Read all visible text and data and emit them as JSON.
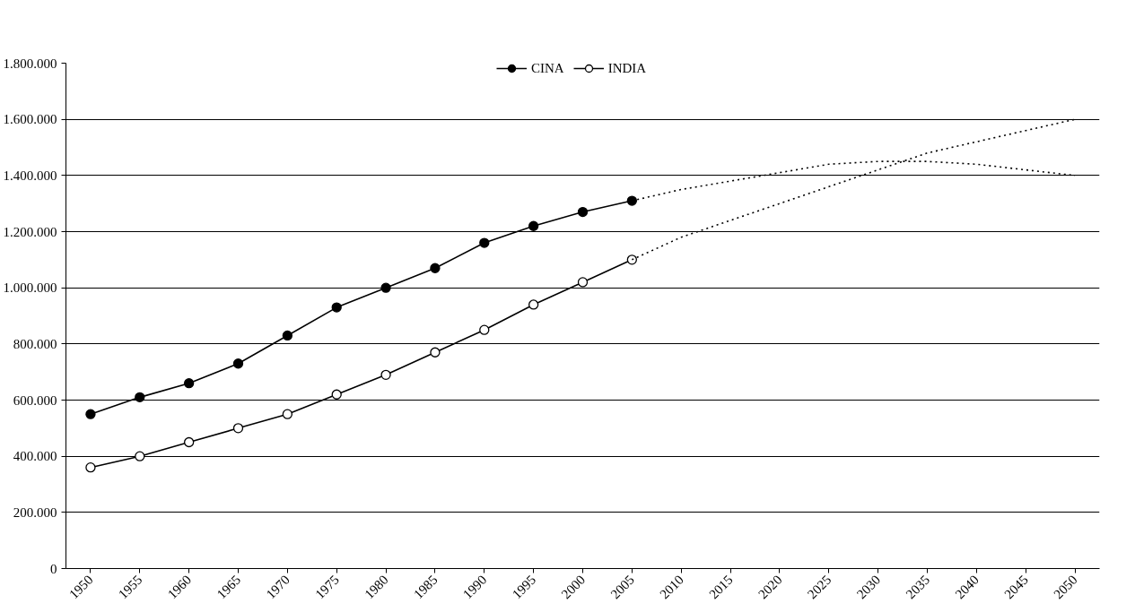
{
  "chart_data": {
    "type": "line",
    "categories": [
      "1950",
      "1955",
      "1960",
      "1965",
      "1970",
      "1975",
      "1980",
      "1985",
      "1990",
      "1995",
      "2000",
      "2005",
      "2010",
      "2015",
      "2020",
      "2025",
      "2030",
      "2035",
      "2040",
      "2045",
      "2050"
    ],
    "series": [
      {
        "name": "CINA",
        "color": "#000000",
        "marker": "circle",
        "line_style": "solid",
        "values": [
          550000,
          610000,
          660000,
          730000,
          830000,
          930000,
          1000000,
          1070000,
          1160000,
          1220000,
          1270000,
          1310000,
          null,
          null,
          null,
          null,
          null,
          null,
          null,
          null,
          null
        ]
      },
      {
        "name": "INDIA",
        "color": "#000000",
        "marker": "circle",
        "line_style": "solid",
        "values": [
          360000,
          400000,
          450000,
          500000,
          550000,
          620000,
          690000,
          770000,
          850000,
          940000,
          1020000,
          1100000,
          null,
          null,
          null,
          null,
          null,
          null,
          null,
          null,
          null
        ]
      },
      {
        "color": "#000000",
        "marker": "none",
        "line_style": "dotted",
        "values": [
          null,
          null,
          null,
          null,
          null,
          null,
          null,
          null,
          null,
          null,
          null,
          1310000,
          1350000,
          1380000,
          1410000,
          1440000,
          1450000,
          1450000,
          1440000,
          1420000,
          1400000
        ]
      },
      {
        "color": "#000000",
        "marker": "none",
        "line_style": "dotted",
        "values": [
          null,
          null,
          null,
          null,
          null,
          null,
          null,
          null,
          null,
          null,
          null,
          1100000,
          1180000,
          1240000,
          1300000,
          1360000,
          1420000,
          1480000,
          1520000,
          1560000,
          1600000
        ]
      }
    ],
    "ylim": [
      0,
      1800000
    ],
    "yticks": [
      0,
      {
        "value": 200000,
        "label": "200.000"
      },
      {
        "value": 400000,
        "label": "400.000"
      },
      {
        "value": 600000,
        "label": "600.000"
      },
      {
        "value": 800000,
        "label": "800.000"
      },
      {
        "value": 1000000,
        "label": "1.000.000"
      },
      {
        "value": 1200000,
        "label": "1.200.000"
      },
      {
        "value": 1400000,
        "label": "1.400.000"
      },
      {
        "value": 1600000,
        "label": "1.600.000"
      },
      {
        "value": 1800000,
        "label": "1.800.000"
      }
    ],
    "grid": "y",
    "legend": "top"
  }
}
